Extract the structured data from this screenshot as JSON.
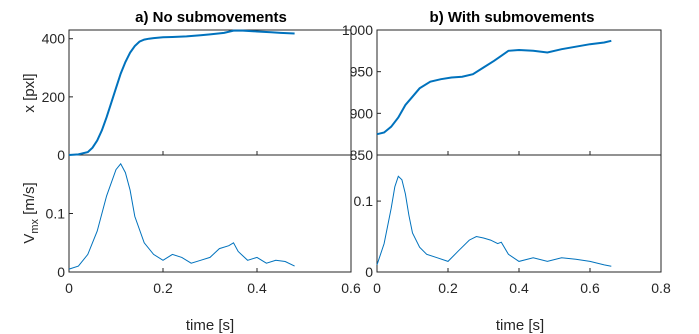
{
  "chart_data": [
    {
      "panel": "a",
      "title": "a) No submovements",
      "type": "line",
      "xlabel": "time [s]",
      "xlim": [
        0,
        0.6
      ],
      "xticks": [
        0,
        0.2,
        0.4,
        0.6
      ],
      "xtick_labels": [
        "0",
        "0.2",
        "0.4",
        "0.6"
      ],
      "top": {
        "ylabel": "x [pxl]",
        "ylim": [
          0,
          430
        ],
        "yticks": [
          0,
          200,
          400
        ],
        "ytick_labels": [
          "0",
          "200",
          "400"
        ],
        "x": [
          0,
          0.02,
          0.04,
          0.05,
          0.06,
          0.07,
          0.08,
          0.09,
          0.1,
          0.11,
          0.12,
          0.13,
          0.14,
          0.15,
          0.16,
          0.17,
          0.18,
          0.2,
          0.22,
          0.25,
          0.28,
          0.3,
          0.33,
          0.35,
          0.37,
          0.4,
          0.43,
          0.45,
          0.48
        ],
        "y": [
          0,
          2,
          10,
          25,
          50,
          85,
          130,
          180,
          230,
          280,
          320,
          352,
          375,
          390,
          397,
          400,
          402,
          405,
          406,
          408,
          412,
          415,
          420,
          428,
          428,
          425,
          422,
          420,
          418
        ]
      },
      "bottom": {
        "ylabel": "V_mx [m/s]",
        "ylim": [
          0,
          0.2
        ],
        "yticks": [
          0,
          0.1
        ],
        "ytick_labels": [
          "0",
          "0.1"
        ],
        "x": [
          0,
          0.02,
          0.04,
          0.06,
          0.08,
          0.1,
          0.11,
          0.12,
          0.13,
          0.14,
          0.16,
          0.18,
          0.2,
          0.22,
          0.24,
          0.26,
          0.28,
          0.3,
          0.32,
          0.34,
          0.35,
          0.36,
          0.38,
          0.4,
          0.42,
          0.44,
          0.46,
          0.48
        ],
        "y": [
          0.005,
          0.01,
          0.03,
          0.07,
          0.13,
          0.175,
          0.185,
          0.17,
          0.14,
          0.095,
          0.05,
          0.03,
          0.02,
          0.03,
          0.025,
          0.015,
          0.02,
          0.025,
          0.04,
          0.045,
          0.05,
          0.035,
          0.02,
          0.025,
          0.015,
          0.02,
          0.018,
          0.01
        ]
      }
    },
    {
      "panel": "b",
      "title": "b) With submovements",
      "type": "line",
      "xlabel": "time [s]",
      "xlim": [
        0,
        0.8
      ],
      "xticks": [
        0,
        0.2,
        0.4,
        0.6,
        0.8
      ],
      "xtick_labels": [
        "0",
        "0.2",
        "0.4",
        "0.6",
        "0.8"
      ],
      "top": {
        "ylabel": "",
        "ylim": [
          850,
          1000
        ],
        "yticks": [
          850,
          900,
          950,
          1000
        ],
        "ytick_labels": [
          "850",
          "900",
          "950",
          "1000"
        ],
        "x": [
          0,
          0.02,
          0.04,
          0.06,
          0.08,
          0.1,
          0.12,
          0.15,
          0.18,
          0.21,
          0.24,
          0.27,
          0.3,
          0.33,
          0.35,
          0.37,
          0.4,
          0.44,
          0.48,
          0.52,
          0.56,
          0.6,
          0.64,
          0.66
        ],
        "y": [
          875,
          877,
          884,
          895,
          910,
          920,
          930,
          938,
          941,
          943,
          944,
          947,
          955,
          963,
          969,
          975,
          976,
          975,
          973,
          977,
          980,
          983,
          985,
          987
        ]
      },
      "bottom": {
        "ylabel": "",
        "ylim": [
          0,
          0.165
        ],
        "yticks": [
          0,
          0.1
        ],
        "ytick_labels": [
          "0",
          "0.1"
        ],
        "x": [
          0,
          0.02,
          0.04,
          0.05,
          0.06,
          0.07,
          0.08,
          0.09,
          0.1,
          0.12,
          0.14,
          0.17,
          0.2,
          0.23,
          0.26,
          0.28,
          0.3,
          0.32,
          0.34,
          0.35,
          0.37,
          0.4,
          0.44,
          0.48,
          0.52,
          0.56,
          0.6,
          0.64,
          0.66
        ],
        "y": [
          0.01,
          0.04,
          0.09,
          0.12,
          0.135,
          0.13,
          0.11,
          0.08,
          0.055,
          0.035,
          0.025,
          0.02,
          0.015,
          0.03,
          0.045,
          0.05,
          0.048,
          0.045,
          0.04,
          0.042,
          0.025,
          0.015,
          0.02,
          0.015,
          0.02,
          0.018,
          0.015,
          0.01,
          0.008
        ]
      }
    }
  ],
  "style": {
    "line_color": "#0072BD"
  }
}
